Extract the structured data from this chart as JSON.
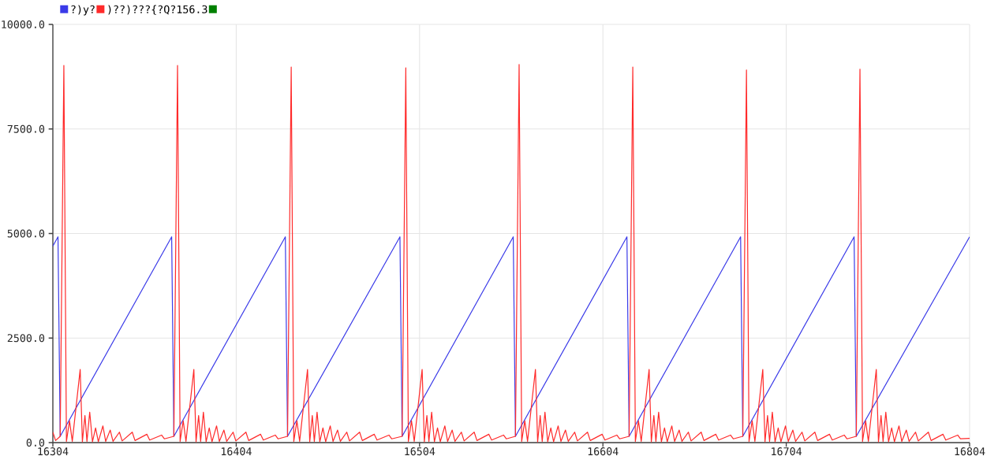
{
  "chart_data": {
    "type": "line",
    "xlim": [
      16304,
      16804
    ],
    "ylim": [
      0,
      10000
    ],
    "xticks": [
      16304,
      16404,
      16504,
      16604,
      16704,
      16804
    ],
    "yticks": [
      {
        "value": 0,
        "label": "0.0"
      },
      {
        "value": 2500,
        "label": "2500.0"
      },
      {
        "value": 5000,
        "label": "5000.0"
      },
      {
        "value": 7500,
        "label": "7500.0"
      },
      {
        "value": 10000,
        "label": "10000.0"
      }
    ],
    "grid": true,
    "legend": "top left",
    "marker": "none",
    "line_style": "solid",
    "series": [
      {
        "name": "?)y?",
        "color": "#3a3ae8",
        "x": [
          16304,
          16306.8,
          16308,
          16368.8,
          16370,
          16430.8,
          16432,
          16493.3,
          16494.5,
          16555.1,
          16556.3,
          16617.1,
          16618.3,
          16679.1,
          16680.3,
          16741,
          16742.2,
          16804
        ],
        "values": [
          4700,
          4920,
          150,
          4920,
          150,
          4920,
          150,
          4920,
          150,
          4920,
          150,
          4920,
          150,
          4920,
          150,
          4920,
          150,
          4920
        ]
      },
      {
        "name": ")??)???{?Q?156.3",
        "color": "#ff2a2a",
        "x": [
          16304,
          16305.5,
          16308,
          16310,
          16311.4,
          16313.1,
          16314.6,
          16318.9,
          16320.1,
          16321.5,
          16322.6,
          16324.1,
          16325.6,
          16327.3,
          16328.8,
          16331.3,
          16332.8,
          16335.3,
          16336.8,
          16340.3,
          16341.8,
          16347.3,
          16348.8,
          16355.3,
          16356.8,
          16363.3,
          16364.8,
          16370,
          16372,
          16373.4,
          16375.1,
          16376.6,
          16380.9,
          16382.1,
          16383.5,
          16384.6,
          16386.1,
          16387.6,
          16389.3,
          16390.8,
          16393.3,
          16394.8,
          16397.3,
          16398.8,
          16402.3,
          16403.8,
          16409.3,
          16410.8,
          16417.3,
          16418.8,
          16425.3,
          16426.8,
          16432,
          16434,
          16435.4,
          16437.1,
          16438.6,
          16442.9,
          16444.1,
          16445.5,
          16446.6,
          16448.1,
          16449.6,
          16451.3,
          16452.8,
          16455.3,
          16456.8,
          16459.3,
          16460.8,
          16464.3,
          16465.8,
          16471.3,
          16472.8,
          16479.3,
          16480.8,
          16487.3,
          16488.8,
          16494.5,
          16496.5,
          16497.9,
          16499.6,
          16501.1,
          16505.4,
          16506.6,
          16508,
          16509.1,
          16510.6,
          16512.1,
          16513.8,
          16515.3,
          16517.8,
          16519.3,
          16521.8,
          16523.3,
          16526.8,
          16528.3,
          16533.8,
          16535.3,
          16541.8,
          16543.3,
          16549.8,
          16551.3,
          16556.3,
          16558.3,
          16559.7,
          16561.4,
          16562.9,
          16567.2,
          16568.4,
          16569.8,
          16570.9,
          16572.4,
          16573.9,
          16575.6,
          16577.1,
          16579.6,
          16581.1,
          16583.6,
          16585.1,
          16588.6,
          16590.1,
          16595.6,
          16597.1,
          16603.6,
          16605.1,
          16611.6,
          16613.1,
          16618.3,
          16620.3,
          16621.7,
          16623.4,
          16624.9,
          16629.2,
          16630.4,
          16631.8,
          16632.9,
          16634.4,
          16635.9,
          16637.6,
          16639.1,
          16641.6,
          16643.1,
          16645.6,
          16647.1,
          16650.6,
          16652.1,
          16657.6,
          16659.1,
          16665.6,
          16667.1,
          16673.6,
          16675.1,
          16680.3,
          16682.3,
          16683.7,
          16685.4,
          16686.9,
          16691.2,
          16692.4,
          16693.8,
          16694.9,
          16696.4,
          16697.9,
          16699.6,
          16701.1,
          16703.6,
          16705.1,
          16707.6,
          16709.1,
          16712.6,
          16714.1,
          16719.6,
          16721.1,
          16727.6,
          16729.1,
          16735.6,
          16737.1,
          16742.2,
          16744.2,
          16745.6,
          16747.3,
          16748.8,
          16753.1,
          16754.3,
          16755.7,
          16756.8,
          16758.3,
          16759.8,
          16761.5,
          16763,
          16765.5,
          16767,
          16769.5,
          16771,
          16774.5,
          16776,
          16781.5,
          16783,
          16789.5,
          16791,
          16797.5,
          16799,
          16804
        ],
        "values": [
          250,
          50,
          150,
          9020,
          30,
          520,
          30,
          1750,
          20,
          650,
          30,
          730,
          20,
          350,
          20,
          400,
          30,
          300,
          30,
          250,
          40,
          250,
          50,
          200,
          60,
          180,
          90,
          150,
          9020,
          30,
          520,
          30,
          1750,
          20,
          650,
          30,
          730,
          20,
          350,
          20,
          400,
          30,
          300,
          30,
          250,
          40,
          250,
          50,
          200,
          60,
          180,
          90,
          150,
          8980,
          30,
          520,
          30,
          1750,
          20,
          650,
          30,
          730,
          20,
          350,
          20,
          400,
          30,
          300,
          30,
          250,
          40,
          250,
          50,
          200,
          60,
          180,
          90,
          150,
          8960,
          30,
          520,
          30,
          1750,
          20,
          650,
          30,
          730,
          20,
          350,
          20,
          400,
          30,
          300,
          30,
          250,
          40,
          250,
          50,
          200,
          60,
          180,
          90,
          150,
          9040,
          30,
          520,
          30,
          1750,
          20,
          650,
          30,
          730,
          20,
          350,
          20,
          400,
          30,
          300,
          30,
          250,
          40,
          250,
          50,
          200,
          60,
          180,
          90,
          150,
          8980,
          30,
          520,
          30,
          1750,
          20,
          650,
          30,
          730,
          20,
          350,
          20,
          400,
          30,
          300,
          30,
          250,
          40,
          250,
          50,
          200,
          60,
          180,
          90,
          150,
          8910,
          30,
          520,
          30,
          1750,
          20,
          650,
          30,
          730,
          20,
          350,
          20,
          400,
          30,
          300,
          30,
          250,
          40,
          250,
          50,
          200,
          60,
          180,
          90,
          150,
          8930,
          30,
          520,
          30,
          1750,
          20,
          650,
          30,
          730,
          20,
          350,
          20,
          400,
          30,
          300,
          30,
          250,
          40,
          250,
          50,
          200,
          60,
          180,
          90,
          100
        ]
      },
      {
        "color": "#008000"
      }
    ]
  }
}
